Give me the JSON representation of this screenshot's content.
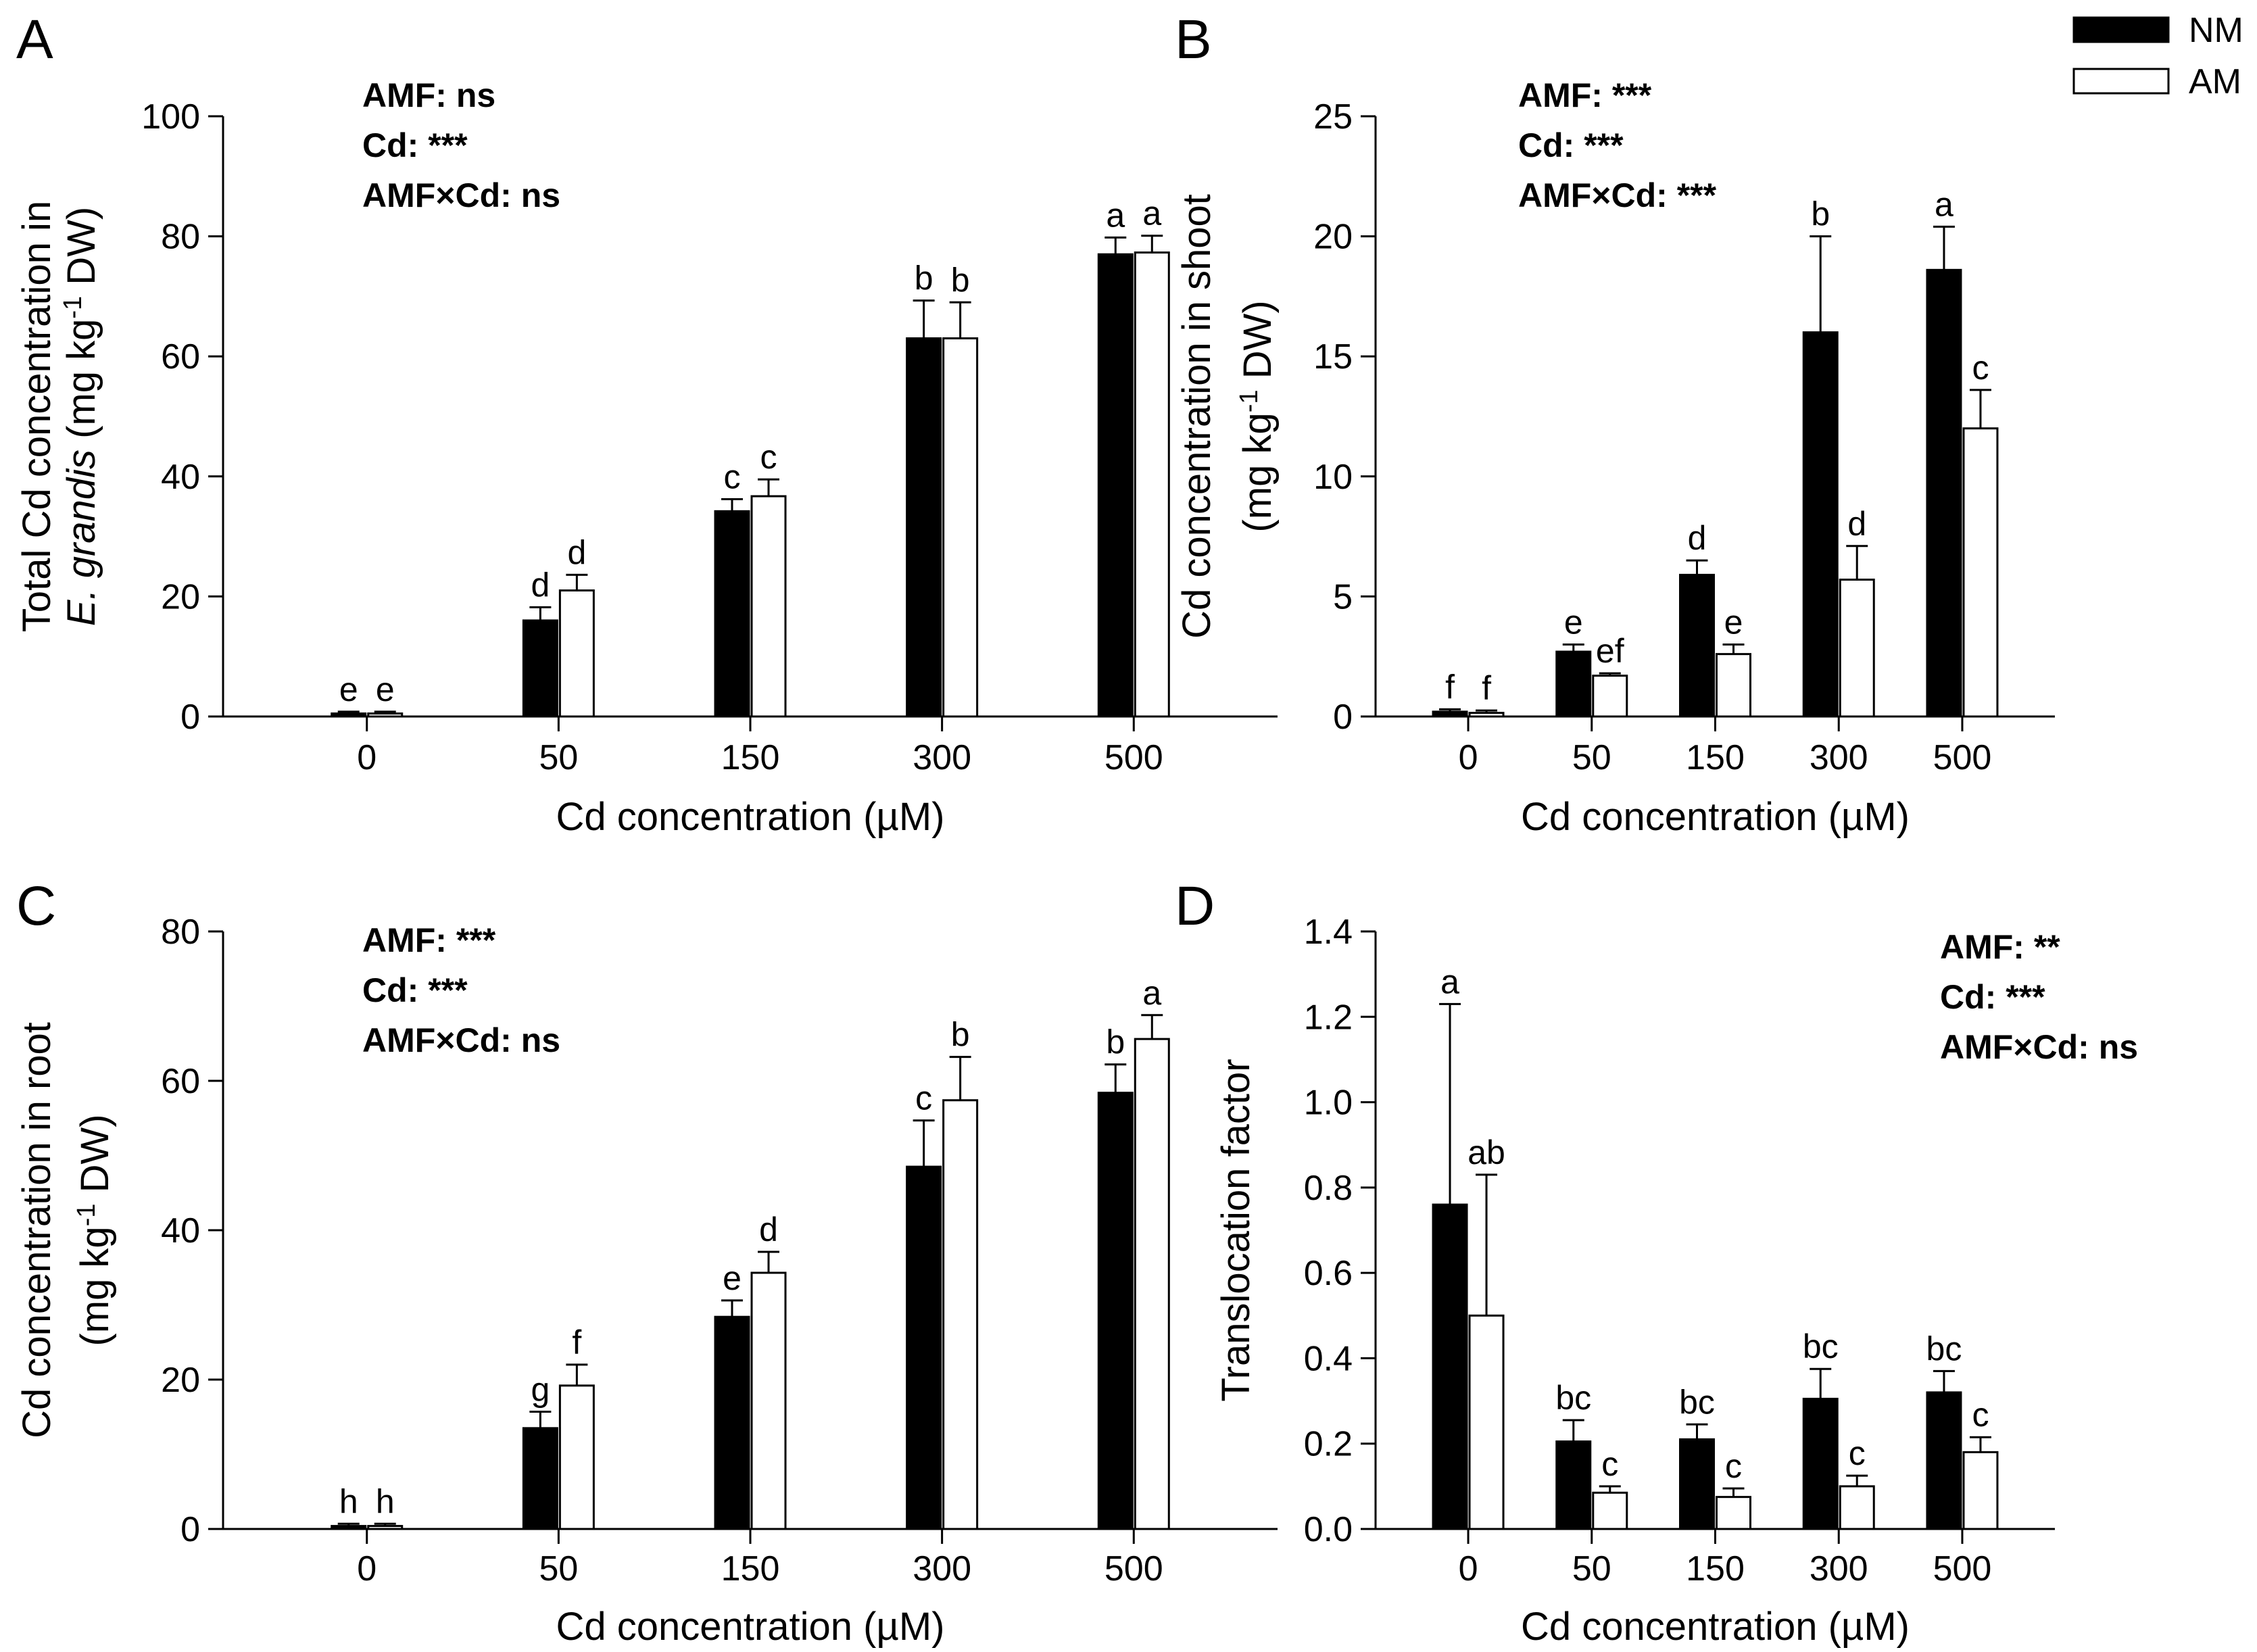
{
  "legend": {
    "items": [
      {
        "label": "NM",
        "color": "#000000"
      },
      {
        "label": "AM",
        "color": "#ffffff"
      }
    ]
  },
  "chart_data": [
    {
      "panel": "A",
      "type": "bar",
      "categories": [
        "0",
        "50",
        "150",
        "300",
        "500"
      ],
      "xlabel": "Cd concentration (µM)",
      "ylabel_line1": "Total Cd concentration in",
      "ylabel_line2_italic": "E. grandis",
      "ylabel_line2_rest": " (mg kg",
      "ylabel_superscript": "-1",
      "ylabel_line2_end": " DW)",
      "ylim": [
        0,
        100
      ],
      "yticks": [
        0,
        20,
        40,
        60,
        80,
        100
      ],
      "ytick_labels": [
        "0",
        "20",
        "40",
        "60",
        "80",
        "100"
      ],
      "stats": [
        "AMF: ns",
        "Cd: ***",
        "AMF×Cd: ns"
      ],
      "stats_position": "top-left",
      "series": [
        {
          "name": "NM",
          "values": [
            0.5,
            16,
            34.2,
            63,
            77
          ],
          "errors": [
            0.3,
            2.2,
            2.0,
            6.3,
            2.8
          ],
          "letters": [
            "e",
            "d",
            "c",
            "b",
            "a"
          ]
        },
        {
          "name": "AM",
          "values": [
            0.5,
            21,
            36.7,
            63,
            77.3
          ],
          "errors": [
            0.3,
            2.6,
            2.8,
            6.0,
            2.8
          ],
          "letters": [
            "e",
            "d",
            "c",
            "b",
            "a"
          ]
        }
      ]
    },
    {
      "panel": "B",
      "type": "bar",
      "categories": [
        "0",
        "50",
        "150",
        "300",
        "500"
      ],
      "xlabel": "Cd concentration (µM)",
      "ylabel_line1": "Cd concentration in shoot",
      "ylabel_line2_rest": "(mg kg",
      "ylabel_superscript": "-1",
      "ylabel_line2_end": " DW)",
      "ylim": [
        0,
        25
      ],
      "yticks": [
        0,
        5,
        10,
        15,
        20,
        25
      ],
      "ytick_labels": [
        "0",
        "5",
        "10",
        "15",
        "20",
        "25"
      ],
      "stats": [
        "AMF: ***",
        "Cd: ***",
        "AMF×Cd: ***"
      ],
      "stats_position": "top-left",
      "series": [
        {
          "name": "NM",
          "values": [
            0.2,
            2.7,
            5.9,
            16,
            18.6
          ],
          "errors": [
            0.1,
            0.3,
            0.6,
            4.0,
            1.8
          ],
          "letters": [
            "f",
            "e",
            "d",
            "b",
            "a"
          ]
        },
        {
          "name": "AM",
          "values": [
            0.15,
            1.7,
            2.6,
            5.7,
            12
          ],
          "errors": [
            0.1,
            0.1,
            0.4,
            1.4,
            1.6
          ],
          "letters": [
            "f",
            "ef",
            "e",
            "d",
            "c"
          ]
        }
      ]
    },
    {
      "panel": "C",
      "type": "bar",
      "categories": [
        "0",
        "50",
        "150",
        "300",
        "500"
      ],
      "xlabel": "Cd concentration (µM)",
      "ylabel_line1": "Cd concentration in root",
      "ylabel_line2_rest": "(mg kg",
      "ylabel_superscript": "-1",
      "ylabel_line2_end": " DW)",
      "ylim": [
        0,
        80
      ],
      "yticks": [
        0,
        20,
        40,
        60,
        80
      ],
      "ytick_labels": [
        "0",
        "20",
        "40",
        "60",
        "80"
      ],
      "stats": [
        "AMF: ***",
        "Cd: ***",
        "AMF×Cd: ns"
      ],
      "stats_position": "top-left",
      "series": [
        {
          "name": "NM",
          "values": [
            0.4,
            13.5,
            28.4,
            48.5,
            58.4
          ],
          "errors": [
            0.3,
            2.2,
            2.2,
            6.2,
            3.8
          ],
          "letters": [
            "h",
            "g",
            "e",
            "c",
            "b"
          ]
        },
        {
          "name": "AM",
          "values": [
            0.4,
            19.2,
            34.3,
            57.4,
            65.6
          ],
          "errors": [
            0.3,
            2.8,
            2.8,
            5.8,
            3.2
          ],
          "letters": [
            "h",
            "f",
            "d",
            "b",
            "a"
          ]
        }
      ]
    },
    {
      "panel": "D",
      "type": "bar",
      "categories": [
        "0",
        "50",
        "150",
        "300",
        "500"
      ],
      "xlabel": "Cd concentration (µM)",
      "ylabel_line1": "Translocation factor",
      "ylim": [
        0,
        1.4
      ],
      "yticks": [
        0,
        0.2,
        0.4,
        0.6,
        0.8,
        1.0,
        1.2,
        1.4
      ],
      "ytick_labels": [
        "0.0",
        "0.2",
        "0.4",
        "0.6",
        "0.8",
        "1.0",
        "1.2",
        "1.4"
      ],
      "stats": [
        "AMF: **",
        "Cd: ***",
        "AMF×Cd: ns"
      ],
      "stats_position": "top-right",
      "series": [
        {
          "name": "NM",
          "values": [
            0.76,
            0.205,
            0.21,
            0.305,
            0.32
          ],
          "errors": [
            0.47,
            0.05,
            0.035,
            0.07,
            0.05
          ],
          "letters": [
            "a",
            "bc",
            "bc",
            "bc",
            "bc"
          ]
        },
        {
          "name": "AM",
          "values": [
            0.5,
            0.085,
            0.075,
            0.1,
            0.18
          ],
          "errors": [
            0.33,
            0.015,
            0.02,
            0.025,
            0.035
          ],
          "letters": [
            "ab",
            "c",
            "c",
            "c",
            "c"
          ]
        }
      ]
    }
  ]
}
